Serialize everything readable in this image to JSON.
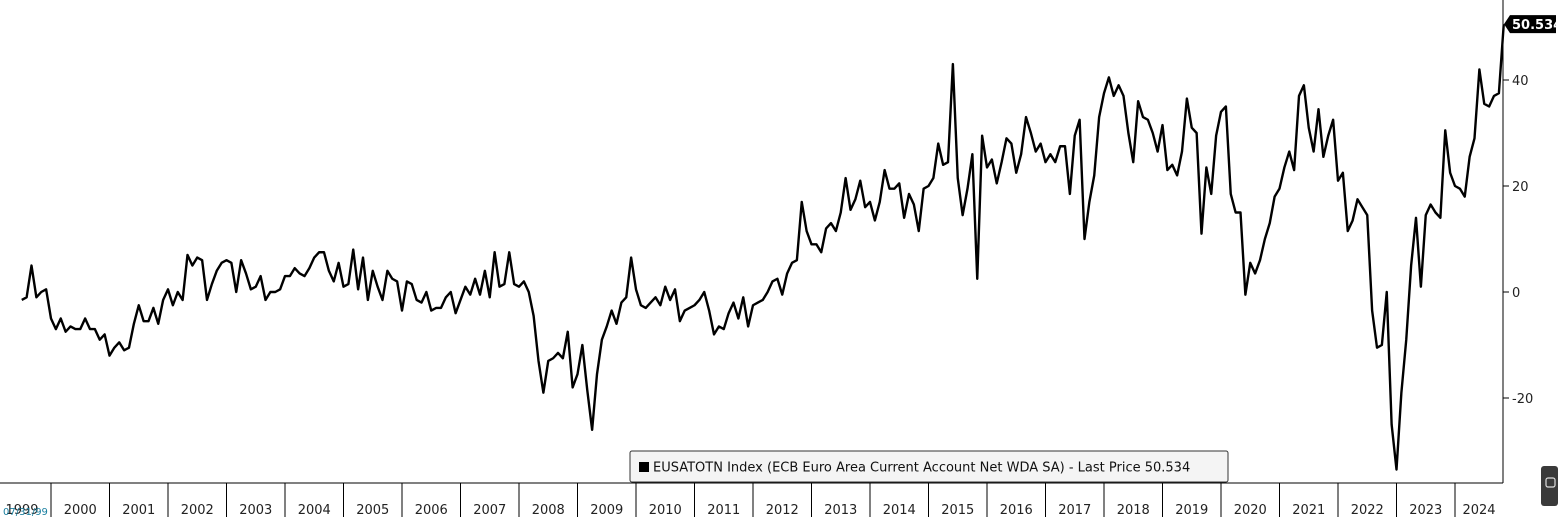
{
  "chart_data": {
    "type": "line",
    "title": "",
    "xlabel": "",
    "ylabel": "",
    "ylim": [
      -34,
      52
    ],
    "y_ticks": [
      40,
      20,
      0,
      -20
    ],
    "y_tick_labels": [
      "40",
      "20",
      "0",
      "-20"
    ],
    "x_year_labels": [
      "1999",
      "2000",
      "2001",
      "2002",
      "2003",
      "2004",
      "2005",
      "2006",
      "2007",
      "2008",
      "2009",
      "2010",
      "2011",
      "2012",
      "2013",
      "2014",
      "2015",
      "2016",
      "2017",
      "2018",
      "2019",
      "2020",
      "2021",
      "2022",
      "2023",
      "2024"
    ],
    "start_date_label": "07/31/99",
    "grid": false,
    "legend_position": "bottom-center",
    "series": [
      {
        "name": "EUSATOTN Index (ECB Euro Area Current Account Net WDA SA) - Last Price 50.534",
        "color": "#000000",
        "x_start": "1999-07",
        "frequency": "monthly",
        "values": [
          -1.5,
          -1,
          5,
          -1,
          0,
          0.5,
          -5,
          -7,
          -5,
          -7.5,
          -6.5,
          -7,
          -7,
          -5,
          -7,
          -7,
          -9,
          -8,
          -12,
          -10.5,
          -9.5,
          -11,
          -10.5,
          -6,
          -2.5,
          -5.5,
          -5.5,
          -3,
          -6,
          -1.5,
          0.5,
          -2.5,
          0,
          -1.5,
          7,
          5,
          6.5,
          6,
          -1.5,
          1.5,
          4,
          5.5,
          6,
          5.5,
          0,
          6,
          3.5,
          0.5,
          1,
          3,
          -1.5,
          0,
          0,
          0.5,
          3,
          3,
          4.5,
          3.5,
          3,
          4.5,
          6.5,
          7.5,
          7.5,
          4,
          2,
          5.5,
          1,
          1.5,
          8,
          0.5,
          6.5,
          -1.5,
          4,
          1,
          -1.5,
          4,
          2.5,
          2,
          -3.5,
          2,
          1.5,
          -1.5,
          -2,
          0,
          -3.5,
          -3,
          -3,
          -1,
          0,
          -4,
          -1.5,
          1,
          -0.5,
          2.5,
          -0.5,
          4,
          -1,
          7.5,
          1,
          1.5,
          7.5,
          1.5,
          1,
          2,
          0,
          -4.5,
          -13,
          -19,
          -13,
          -12.5,
          -11.5,
          -12.5,
          -7.5,
          -18,
          -15.5,
          -10,
          -18.5,
          -26,
          -15.5,
          -9,
          -6.5,
          -3.5,
          -6,
          -2,
          -1,
          6.5,
          0.5,
          -2.5,
          -3,
          -2,
          -1,
          -2.5,
          1,
          -1.5,
          0.5,
          -5.5,
          -3.5,
          -3,
          -2.5,
          -1.5,
          0,
          -3.5,
          -8,
          -6.5,
          -7,
          -4,
          -2,
          -5,
          -1,
          -6.5,
          -2.5,
          -2,
          -1.5,
          0,
          2,
          2.5,
          -0.5,
          3.5,
          5.5,
          6,
          17,
          11.5,
          9,
          9,
          7.5,
          12,
          13,
          11.5,
          15,
          21.5,
          15.5,
          17.5,
          21,
          16,
          17,
          13.5,
          17,
          23,
          19.5,
          19.5,
          20.5,
          14,
          18.5,
          16.5,
          11.5,
          19.5,
          20,
          21.5,
          28,
          24,
          24.5,
          43,
          21.5,
          14.5,
          19.5,
          26,
          2.5,
          29.5,
          23.5,
          25,
          20.5,
          24.5,
          29,
          28,
          22.5,
          26,
          33,
          30,
          26.5,
          28,
          24.5,
          26,
          24.5,
          27.5,
          27.5,
          18.5,
          29.5,
          32.5,
          10,
          17,
          22,
          33,
          37.5,
          40.5,
          37,
          39,
          37,
          30,
          24.5,
          36,
          33,
          32.5,
          30,
          26.5,
          31.5,
          23,
          24,
          22,
          26.5,
          36.5,
          31,
          30,
          11,
          23.5,
          18.5,
          29.5,
          34,
          35,
          18.5,
          15,
          15,
          -0.5,
          5.5,
          3.5,
          6,
          10,
          13,
          18,
          19.5,
          23.5,
          26.5,
          23,
          37,
          39,
          31,
          26.5,
          34.5,
          25.5,
          29.5,
          32.5,
          21,
          22.5,
          11.5,
          13.5,
          17.5,
          16,
          14.5,
          -3.5,
          -10.5,
          -10,
          0,
          -25,
          -33.5,
          -19,
          -9,
          5,
          14,
          1,
          14.5,
          16.5,
          15,
          14,
          30.5,
          22.5,
          20,
          19.5,
          18,
          25.5,
          29,
          42,
          35.5,
          35,
          37,
          37.5,
          50.534
        ]
      }
    ],
    "last_price_label": "50.534",
    "last_price_tag_color": "#000000"
  }
}
